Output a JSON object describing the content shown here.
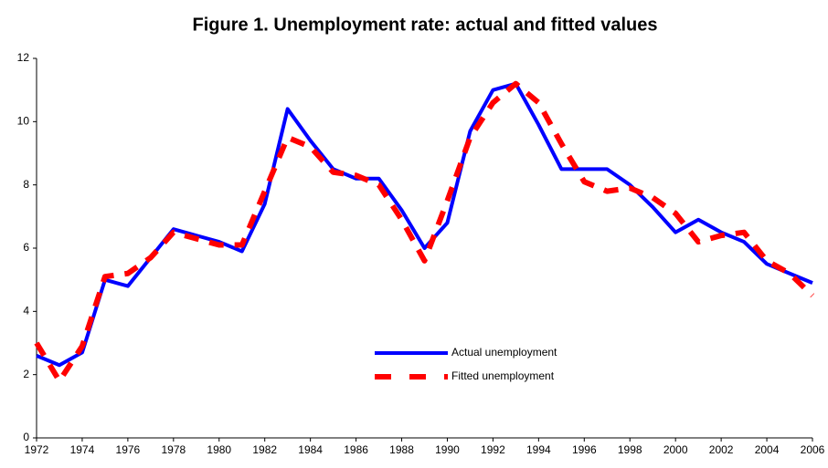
{
  "chart_data": {
    "type": "line",
    "title": "Figure 1. Unemployment rate: actual and fitted values",
    "x": [
      1972,
      1973,
      1974,
      1975,
      1976,
      1977,
      1978,
      1979,
      1980,
      1981,
      1982,
      1983,
      1984,
      1985,
      1986,
      1987,
      1988,
      1989,
      1990,
      1991,
      1992,
      1993,
      1994,
      1995,
      1996,
      1997,
      1998,
      1999,
      2000,
      2001,
      2002,
      2003,
      2004,
      2005,
      2006
    ],
    "series": [
      {
        "name": "Actual unemployment",
        "color": "#0000ff",
        "dash": false,
        "values": [
          2.6,
          2.3,
          2.7,
          5.0,
          4.8,
          5.7,
          6.6,
          6.4,
          6.2,
          5.9,
          7.4,
          10.4,
          9.4,
          8.5,
          8.2,
          8.2,
          7.2,
          6.0,
          6.8,
          9.7,
          11.0,
          11.2,
          9.9,
          8.5,
          8.5,
          8.5,
          8.0,
          7.3,
          6.5,
          6.9,
          6.5,
          6.2,
          5.5,
          5.2,
          4.9
        ]
      },
      {
        "name": "Fitted unemployment",
        "color": "#ff0000",
        "dash": true,
        "values": [
          3.0,
          1.8,
          2.9,
          5.1,
          5.2,
          5.7,
          6.5,
          6.3,
          6.1,
          6.1,
          7.8,
          9.5,
          9.2,
          8.4,
          8.3,
          8.0,
          6.9,
          5.6,
          7.5,
          9.5,
          10.6,
          11.2,
          10.6,
          9.3,
          8.1,
          7.8,
          7.9,
          7.6,
          7.1,
          6.2,
          6.4,
          6.5,
          5.6,
          5.2,
          4.5
        ]
      }
    ],
    "xlim": [
      1972,
      2006
    ],
    "xticks": [
      1972,
      1974,
      1976,
      1978,
      1980,
      1982,
      1984,
      1986,
      1988,
      1990,
      1992,
      1994,
      1996,
      1998,
      2000,
      2002,
      2004,
      2006
    ],
    "ylim": [
      0,
      12
    ],
    "yticks": [
      0,
      2,
      4,
      6,
      8,
      10,
      12
    ],
    "grid": false
  }
}
